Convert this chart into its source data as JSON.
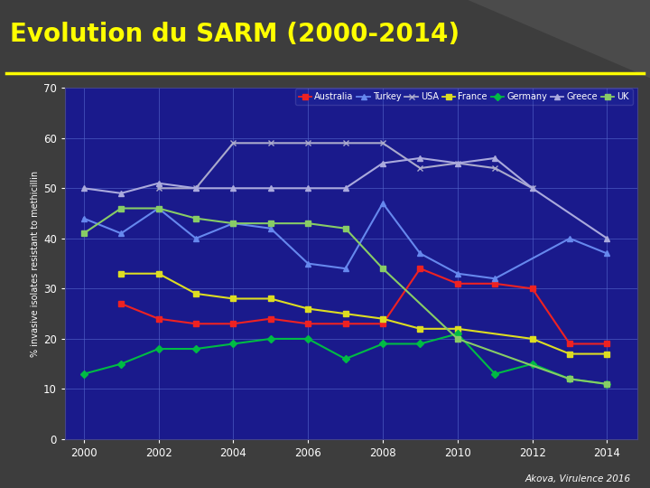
{
  "title": "Evolution du SARM (2000-2014)",
  "title_color": "#FFFF00",
  "title_fontsize": 20,
  "underline_color": "#FFFF00",
  "bg_outer": "#3d3d3d",
  "bg_plot": "#1a1a8c",
  "text_color": "#ffffff",
  "grid_color": "#5566cc",
  "ylabel": "% invasive isolates resistant to methicillin",
  "xlim": [
    1999.5,
    2014.8
  ],
  "ylim": [
    0,
    70
  ],
  "yticks": [
    0,
    10,
    20,
    30,
    40,
    50,
    60,
    70
  ],
  "xticks": [
    2000,
    2002,
    2004,
    2006,
    2008,
    2010,
    2012,
    2014
  ],
  "source_text": "Akova, Virulence 2016",
  "series": {
    "Australia": {
      "color": "#ee2222",
      "marker": "s",
      "lw": 1.5,
      "ms": 4,
      "years": [
        2001,
        2002,
        2003,
        2004,
        2005,
        2006,
        2007,
        2008,
        2009,
        2010,
        2011,
        2012,
        2013,
        2014
      ],
      "vals": [
        27,
        24,
        23,
        23,
        24,
        23,
        23,
        23,
        34,
        31,
        31,
        30,
        19,
        19
      ]
    },
    "Turkey": {
      "color": "#6688ee",
      "marker": "^",
      "lw": 1.5,
      "ms": 4,
      "years": [
        2000,
        2001,
        2002,
        2003,
        2004,
        2005,
        2006,
        2007,
        2008,
        2009,
        2010,
        2011,
        2013,
        2014
      ],
      "vals": [
        44,
        41,
        46,
        40,
        43,
        42,
        35,
        34,
        47,
        37,
        33,
        32,
        40,
        37
      ]
    },
    "USA": {
      "color": "#aaaacc",
      "marker": "x",
      "lw": 1.5,
      "ms": 5,
      "years": [
        2002,
        2003,
        2004,
        2005,
        2006,
        2007,
        2008,
        2009,
        2010,
        2011,
        2012
      ],
      "vals": [
        50,
        50,
        59,
        59,
        59,
        59,
        59,
        54,
        55,
        54,
        50
      ]
    },
    "France": {
      "color": "#dddd22",
      "marker": "s",
      "lw": 1.5,
      "ms": 4,
      "years": [
        2001,
        2002,
        2003,
        2004,
        2005,
        2006,
        2007,
        2008,
        2009,
        2010,
        2012,
        2013,
        2014
      ],
      "vals": [
        33,
        33,
        29,
        28,
        28,
        26,
        25,
        24,
        22,
        22,
        20,
        17,
        17
      ]
    },
    "Germany": {
      "color": "#00bb44",
      "marker": "D",
      "lw": 1.5,
      "ms": 4,
      "years": [
        2000,
        2001,
        2002,
        2003,
        2004,
        2005,
        2006,
        2007,
        2008,
        2009,
        2010,
        2011,
        2012,
        2013,
        2014
      ],
      "vals": [
        13,
        15,
        18,
        18,
        19,
        20,
        20,
        16,
        19,
        19,
        21,
        13,
        15,
        12,
        11
      ]
    },
    "Greece": {
      "color": "#aaaadd",
      "marker": "^",
      "lw": 1.5,
      "ms": 4,
      "years": [
        2000,
        2001,
        2002,
        2003,
        2004,
        2005,
        2006,
        2007,
        2008,
        2009,
        2010,
        2011,
        2012,
        2014
      ],
      "vals": [
        50,
        49,
        51,
        50,
        50,
        50,
        50,
        50,
        55,
        56,
        55,
        56,
        50,
        40
      ]
    },
    "UK": {
      "color": "#88cc66",
      "marker": "s",
      "lw": 1.5,
      "ms": 4,
      "years": [
        2000,
        2001,
        2002,
        2003,
        2004,
        2005,
        2006,
        2007,
        2008,
        2010,
        2013,
        2014
      ],
      "vals": [
        41,
        46,
        46,
        44,
        43,
        43,
        43,
        42,
        34,
        20,
        12,
        11
      ]
    }
  }
}
